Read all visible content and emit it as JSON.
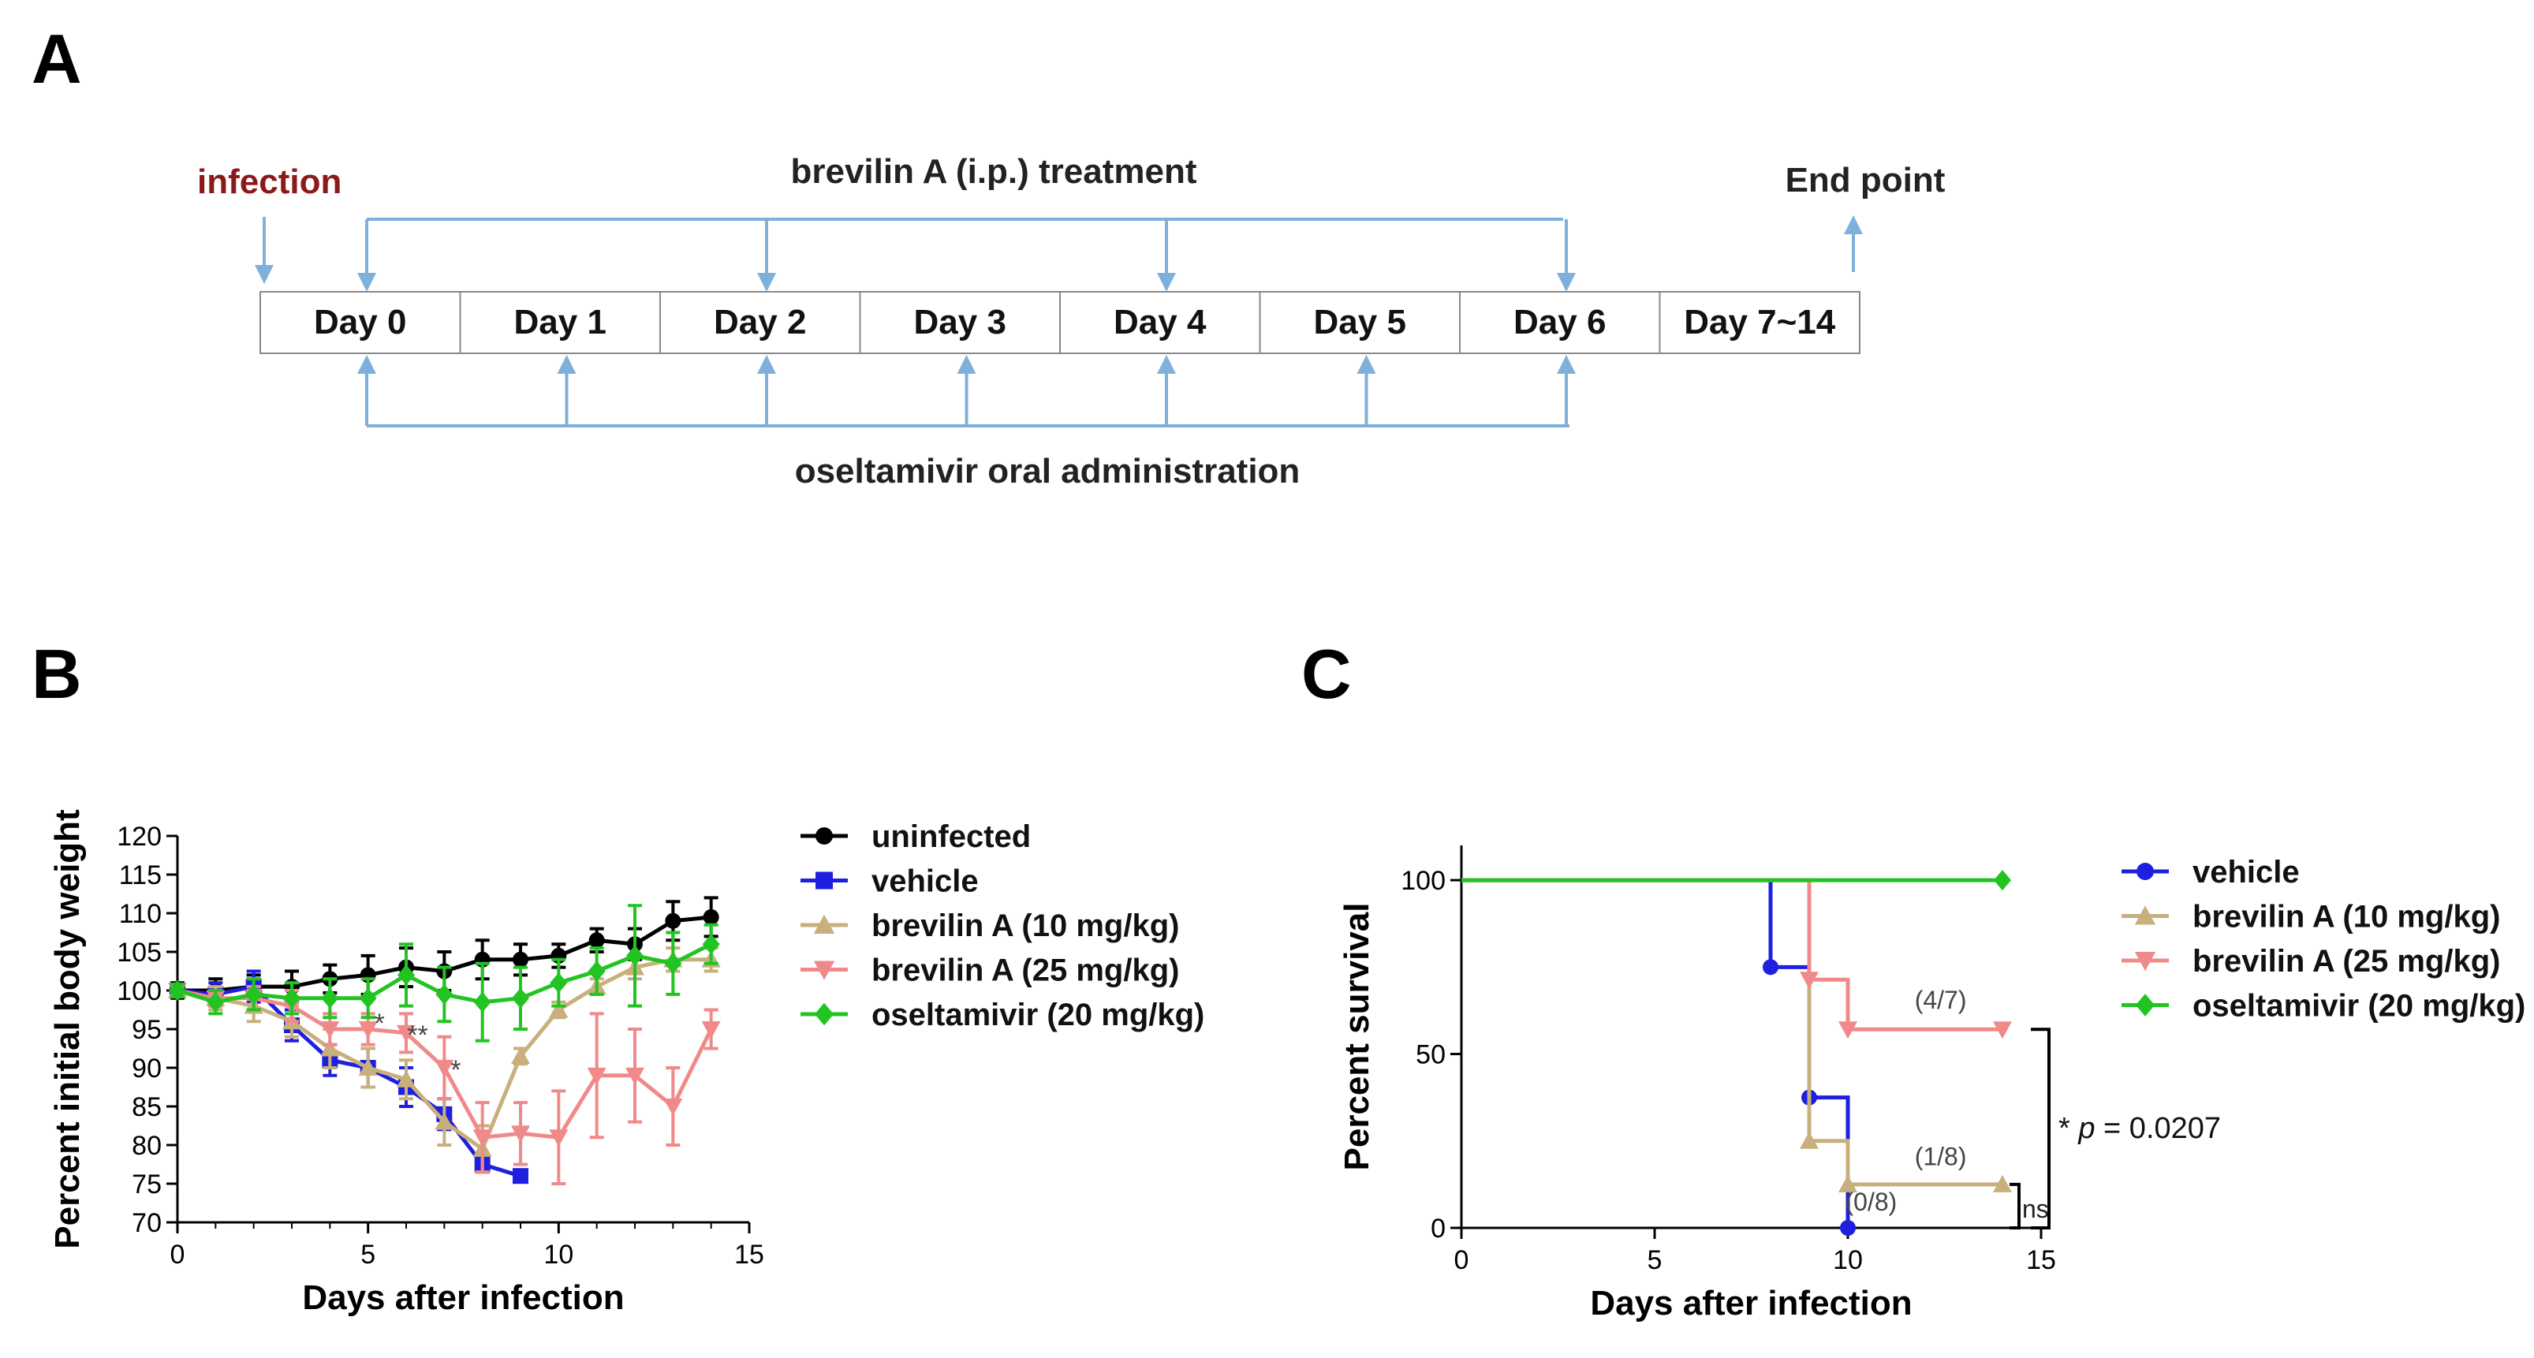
{
  "panels": {
    "a": "A",
    "b": "B",
    "c": "C"
  },
  "timeline": {
    "infection_label": "infection",
    "treatment_label": "brevilin A (i.p.) treatment",
    "endpoint_label": "End point",
    "oseltamivir_label": "oseltamivir oral administration",
    "days": [
      "Day 0",
      "Day 1",
      "Day 2",
      "Day 3",
      "Day 4",
      "Day 5",
      "Day 6",
      "Day 7~14"
    ],
    "brevilin_days": [
      0,
      2,
      4,
      6
    ],
    "oseltamivir_days": [
      0,
      1,
      2,
      3,
      4,
      5,
      6
    ],
    "colors": {
      "arrow": "#7fb0dc",
      "infection": "#8b1a1a",
      "text": "#222222"
    }
  },
  "chart_data": [
    {
      "type": "line",
      "panel": "B",
      "title": "",
      "xlabel": "Days after infection",
      "ylabel": "Percent initial body weight",
      "xlim": [
        0,
        15
      ],
      "ylim": [
        70,
        120
      ],
      "xticks": [
        0,
        5,
        10,
        15
      ],
      "yticks": [
        70,
        75,
        80,
        85,
        90,
        95,
        100,
        105,
        110,
        115,
        120
      ],
      "legend": "top-right",
      "series": [
        {
          "name": "uninfected",
          "color": "#000000",
          "marker": "circle",
          "x": [
            0,
            1,
            2,
            3,
            4,
            5,
            6,
            7,
            8,
            9,
            10,
            11,
            12,
            13,
            14
          ],
          "y": [
            100,
            100,
            100.5,
            100.5,
            101.5,
            102,
            103,
            102.5,
            104,
            104,
            104.5,
            106.5,
            106,
            109,
            109.5
          ],
          "err": [
            1,
            1.5,
            1.5,
            2,
            1.8,
            2.5,
            2.5,
            2.5,
            2.5,
            2,
            1.5,
            1.5,
            2,
            2.5,
            2.5
          ]
        },
        {
          "name": "vehicle",
          "color": "#1f1fe0",
          "marker": "square",
          "x": [
            0,
            1,
            2,
            3,
            4,
            5,
            6,
            7,
            8,
            9
          ],
          "y": [
            100,
            99.5,
            100.5,
            95.5,
            91,
            90,
            87.5,
            84,
            77.5,
            76
          ],
          "err": [
            0.8,
            1.5,
            2,
            2,
            2,
            2.5,
            2.5,
            2,
            1,
            0
          ]
        },
        {
          "name": "brevilin A (10 mg/kg)",
          "color": "#c8b07c",
          "marker": "triangle-up",
          "x": [
            0,
            1,
            2,
            3,
            4,
            5,
            6,
            7,
            8,
            9,
            10,
            11,
            12,
            13,
            14
          ],
          "y": [
            100,
            99,
            98,
            96,
            92.5,
            90,
            88.5,
            83,
            79.5,
            91.5,
            97.5,
            100.5,
            103,
            104,
            104
          ],
          "err": [
            0.8,
            1.5,
            2,
            2,
            2.5,
            2.5,
            2.5,
            3,
            3,
            1,
            1,
            1,
            1.5,
            1.5,
            1.5
          ]
        },
        {
          "name": "brevilin A (25 mg/kg)",
          "color": "#f08a8a",
          "marker": "triangle-down",
          "x": [
            0,
            1,
            2,
            3,
            4,
            5,
            6,
            7,
            8,
            9,
            10,
            11,
            12,
            13,
            14
          ],
          "y": [
            100,
            99,
            99,
            98,
            95,
            95,
            94.5,
            90,
            81,
            81.5,
            81,
            89,
            89,
            85,
            95
          ],
          "err": [
            0.8,
            1,
            1.5,
            2,
            2,
            2,
            2.5,
            4,
            4.5,
            4,
            6,
            8,
            6,
            5,
            2.5
          ]
        },
        {
          "name": "oseltamivir (20 mg/kg)",
          "color": "#22c422",
          "marker": "diamond",
          "x": [
            0,
            1,
            2,
            3,
            4,
            5,
            6,
            7,
            8,
            9,
            10,
            11,
            12,
            13,
            14
          ],
          "y": [
            100,
            98.5,
            99.5,
            99,
            99,
            99,
            102,
            99.5,
            98.5,
            99,
            101,
            102.5,
            104.5,
            103.5,
            106
          ],
          "err": [
            0.8,
            1.5,
            2,
            2,
            2.5,
            2.5,
            4,
            3.5,
            5,
            4,
            3,
            3,
            6.5,
            4,
            2.5
          ]
        }
      ],
      "annotations": [
        {
          "text": "*",
          "x": 5.3,
          "y": 96
        },
        {
          "text": "**",
          "x": 6.3,
          "y": 94.5
        },
        {
          "text": "*",
          "x": 7.3,
          "y": 90
        }
      ]
    },
    {
      "type": "line",
      "panel": "C",
      "title": "",
      "xlabel": "Days after infection",
      "ylabel": "Percent survival",
      "xlim": [
        0,
        15
      ],
      "ylim": [
        0,
        110
      ],
      "xticks": [
        0,
        5,
        10,
        15
      ],
      "yticks": [
        0,
        50,
        100
      ],
      "legend": "top-right",
      "series": [
        {
          "name": "vehicle",
          "color": "#1f1fe0",
          "marker": "circle",
          "x": [
            0,
            8,
            9,
            10
          ],
          "y": [
            100,
            75,
            37.5,
            0
          ]
        },
        {
          "name": "brevilin A (10 mg/kg)",
          "color": "#c8b07c",
          "marker": "triangle-up",
          "x": [
            0,
            9,
            10,
            14
          ],
          "y": [
            100,
            25,
            12.5,
            12.5
          ]
        },
        {
          "name": "brevilin A (25 mg/kg)",
          "color": "#f08a8a",
          "marker": "triangle-down",
          "x": [
            0,
            9,
            10,
            14
          ],
          "y": [
            100,
            71.4,
            57.1,
            57.1
          ]
        },
        {
          "name": "oseltamivir (20 mg/kg)",
          "color": "#22c422",
          "marker": "diamond",
          "x": [
            0,
            14
          ],
          "y": [
            100,
            100
          ]
        }
      ],
      "annotations": [
        {
          "text": "(4/7)",
          "x": 12.4,
          "y": 63
        },
        {
          "text": "(1/8)",
          "x": 12.4,
          "y": 18
        },
        {
          "text": "(0/8)",
          "x": 10.6,
          "y": 5
        }
      ],
      "significance": [
        {
          "text": "ns"
        },
        {
          "prefix": "* ",
          "p": "p",
          "rest": " = 0.0207"
        }
      ]
    }
  ]
}
